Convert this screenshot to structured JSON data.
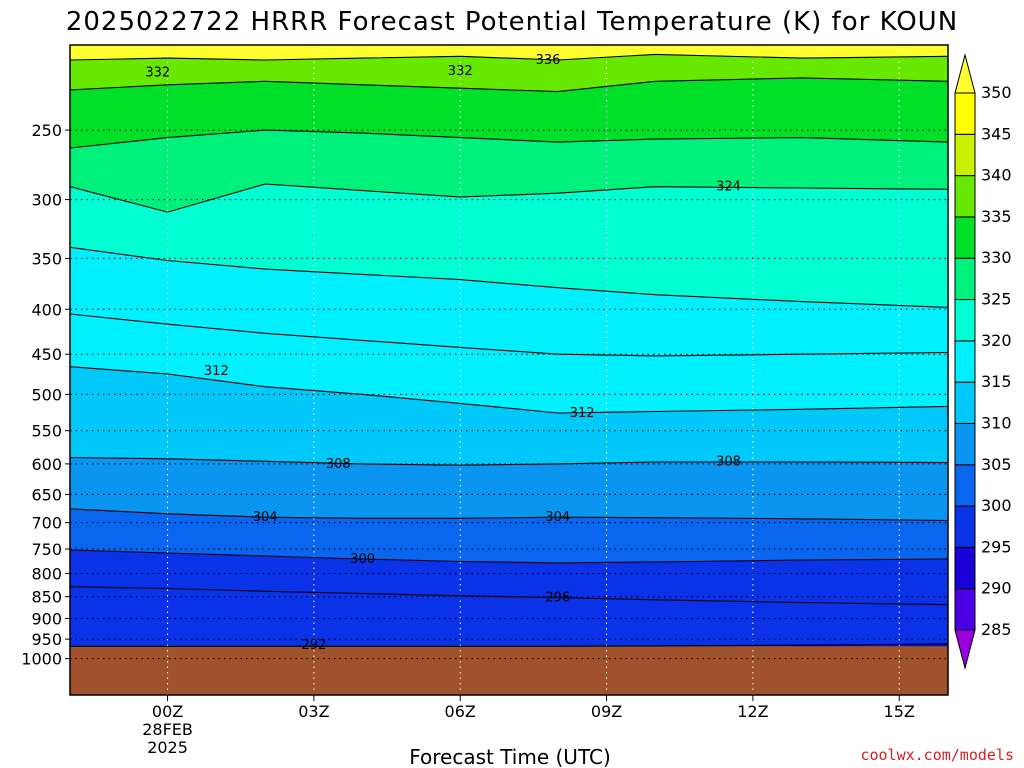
{
  "chart_data": {
    "type": "area",
    "title": "2025022722 HRRR Forecast Potential Temperature (K) for KOUN",
    "xlabel": "Forecast Time (UTC)",
    "ylabel": "",
    "x_ticks": [
      "00Z",
      "03Z",
      "06Z",
      "09Z",
      "12Z",
      "15Z"
    ],
    "x_tick_hours": [
      0,
      3,
      6,
      9,
      12,
      15
    ],
    "x_range_hours": [
      -2,
      16
    ],
    "date_label": [
      "28FEB",
      "2025"
    ],
    "y_scale": "log",
    "y_reversed": true,
    "y_range_hPa": [
      1100,
      200
    ],
    "y_ticks": [
      250,
      300,
      350,
      400,
      450,
      500,
      550,
      600,
      650,
      700,
      750,
      800,
      850,
      900,
      950,
      1000
    ],
    "surface_pressure_hPa": 968,
    "grid": true,
    "colorbar": {
      "levels": [
        285,
        290,
        295,
        300,
        305,
        310,
        315,
        320,
        325,
        330,
        335,
        340,
        345,
        350
      ],
      "colors": [
        "#9a00e0",
        "#4d00e6",
        "#1a00d6",
        "#0a32e6",
        "#0a66ee",
        "#0a95f0",
        "#00c8f8",
        "#00f0ff",
        "#00ffd2",
        "#00f07c",
        "#00e028",
        "#66e800",
        "#c8f000",
        "#ffff00",
        "#ffff30"
      ],
      "placement": "right"
    },
    "contour_labels": [
      {
        "text": "332",
        "hour": -0.2,
        "hPa": 215
      },
      {
        "text": "332",
        "hour": 6.0,
        "hPa": 214
      },
      {
        "text": "336",
        "hour": 7.8,
        "hPa": 208
      },
      {
        "text": "324",
        "hour": 11.5,
        "hPa": 290
      },
      {
        "text": "312",
        "hour": 1.0,
        "hPa": 470
      },
      {
        "text": "312",
        "hour": 8.5,
        "hPa": 525
      },
      {
        "text": "308",
        "hour": 3.5,
        "hPa": 600
      },
      {
        "text": "308",
        "hour": 11.5,
        "hPa": 596
      },
      {
        "text": "304",
        "hour": 2.0,
        "hPa": 690
      },
      {
        "text": "304",
        "hour": 8.0,
        "hPa": 690
      },
      {
        "text": "300",
        "hour": 4.0,
        "hPa": 770
      },
      {
        "text": "296",
        "hour": 8.0,
        "hPa": 852
      },
      {
        "text": "292",
        "hour": 3.0,
        "hPa": 965
      }
    ],
    "isentropes": [
      {
        "theta": 292,
        "hPa": [
          968,
          968,
          968,
          968,
          968,
          968,
          967,
          965,
          962
        ]
      },
      {
        "theta": 296,
        "hPa": [
          828,
          832,
          838,
          843,
          848,
          852,
          857,
          863,
          868
        ]
      },
      {
        "theta": 300,
        "hPa": [
          752,
          758,
          764,
          770,
          775,
          778,
          776,
          772,
          770
        ]
      },
      {
        "theta": 304,
        "hPa": [
          675,
          684,
          690,
          692,
          692,
          690,
          691,
          693,
          696
        ]
      },
      {
        "theta": 308,
        "hPa": [
          590,
          592,
          596,
          600,
          602,
          600,
          597,
          597,
          598
        ]
      },
      {
        "theta": 312,
        "hPa": [
          465,
          474,
          490,
          500,
          512,
          525,
          523,
          520,
          516
        ]
      },
      {
        "theta": 316,
        "hPa": [
          405,
          416,
          426,
          434,
          442,
          450,
          452,
          450,
          448
        ]
      },
      {
        "theta": 320,
        "hPa": [
          340,
          352,
          360,
          365,
          370,
          378,
          385,
          392,
          398
        ]
      },
      {
        "theta": 324,
        "hPa": [
          290,
          310,
          288,
          293,
          298,
          295,
          290,
          291,
          292
        ]
      },
      {
        "theta": 328,
        "hPa": [
          262,
          255,
          250,
          252,
          255,
          258,
          256,
          255,
          258
        ]
      },
      {
        "theta": 332,
        "hPa": [
          225,
          222,
          220,
          222,
          224,
          226,
          220,
          218,
          220
        ]
      },
      {
        "theta": 336,
        "hPa": [
          208,
          207,
          208,
          207,
          206,
          208,
          205,
          207,
          206
        ]
      }
    ],
    "isentrope_hours": [
      -2,
      0,
      2,
      4,
      6,
      8,
      10,
      13,
      16
    ]
  },
  "credit": "coolwx.com/models"
}
